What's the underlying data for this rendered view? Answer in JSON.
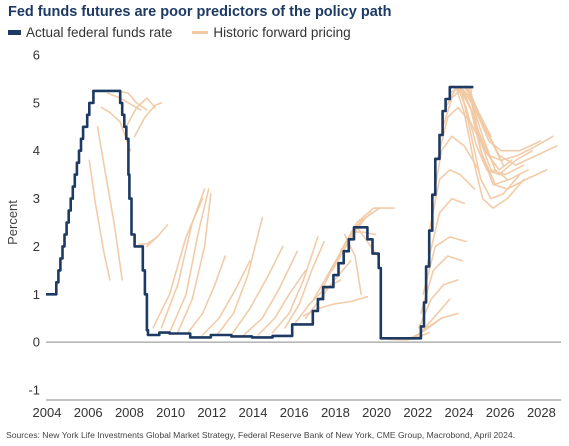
{
  "chart_data": {
    "type": "line",
    "title": "Fed funds futures are poor predictors of the policy path",
    "ylabel": "Percent",
    "xlabel": "",
    "xlim": [
      2004,
      2029
    ],
    "ylim": [
      -1,
      6
    ],
    "x_ticks": [
      "2004",
      "2006",
      "2008",
      "2010",
      "2012",
      "2014",
      "2016",
      "2018",
      "2020",
      "2022",
      "2024",
      "2026",
      "2028"
    ],
    "y_ticks": [
      "-1",
      "0",
      "1",
      "2",
      "3",
      "4",
      "5",
      "6"
    ],
    "legend": {
      "position": "top-left"
    },
    "colors": {
      "actual": "#1d3a63",
      "forward": "#f0c9a4",
      "title": "#1d3a63"
    },
    "series": [
      {
        "name": "Actual federal funds rate",
        "style": "step",
        "x": [
          2004.0,
          2004.5,
          2004.6,
          2004.7,
          2004.8,
          2004.9,
          2005.0,
          2005.1,
          2005.2,
          2005.3,
          2005.4,
          2005.5,
          2005.6,
          2005.7,
          2005.8,
          2005.9,
          2006.0,
          2006.1,
          2006.2,
          2006.3,
          2006.4,
          2006.5,
          2007.6,
          2007.7,
          2007.8,
          2007.9,
          2008.0,
          2008.05,
          2008.15,
          2008.3,
          2008.7,
          2008.8,
          2008.9,
          2008.95,
          2009.5,
          2010.0,
          2011.0,
          2012.0,
          2013.0,
          2014.0,
          2015.0,
          2015.95,
          2016.95,
          2017.2,
          2017.45,
          2017.95,
          2018.2,
          2018.45,
          2018.7,
          2018.95,
          2019.5,
          2019.6,
          2019.85,
          2020.15,
          2020.25,
          2021.0,
          2022.0,
          2022.2,
          2022.35,
          2022.45,
          2022.6,
          2022.75,
          2022.9,
          2023.1,
          2023.25,
          2023.4,
          2023.6,
          2024.7,
          2024.75
        ],
        "y": [
          1.0,
          1.25,
          1.5,
          1.75,
          2.0,
          2.25,
          2.5,
          2.75,
          3.0,
          3.25,
          3.5,
          3.75,
          4.0,
          4.25,
          4.5,
          4.5,
          4.75,
          5.0,
          5.0,
          5.25,
          5.25,
          5.25,
          5.0,
          4.75,
          4.5,
          4.25,
          3.5,
          3.0,
          2.25,
          2.0,
          1.5,
          1.0,
          0.25,
          0.15,
          0.2,
          0.18,
          0.1,
          0.15,
          0.12,
          0.1,
          0.13,
          0.37,
          0.65,
          0.9,
          1.15,
          1.4,
          1.65,
          1.9,
          2.15,
          2.4,
          2.4,
          2.15,
          1.85,
          1.55,
          0.08,
          0.08,
          0.08,
          0.33,
          0.83,
          1.58,
          2.33,
          3.08,
          3.83,
          4.33,
          4.83,
          5.08,
          5.33,
          5.33,
          5.33
        ]
      },
      {
        "name": "Historic forward pricing",
        "x": [
          2006.1,
          2006.4,
          2006.8,
          2007.1
        ],
        "y": [
          3.8,
          2.9,
          1.9,
          1.3
        ]
      },
      {
        "name": "",
        "x": [
          2006.5,
          2006.9,
          2007.3,
          2007.7
        ],
        "y": [
          4.5,
          3.5,
          2.5,
          1.3
        ]
      },
      {
        "name": "",
        "x": [
          2006.7,
          2007.1,
          2007.6,
          2008.1
        ],
        "y": [
          4.9,
          4.8,
          4.6,
          4.0
        ]
      },
      {
        "name": "",
        "x": [
          2007.0,
          2007.6,
          2008.2,
          2008.6
        ],
        "y": [
          5.2,
          5.1,
          4.95,
          4.85
        ]
      },
      {
        "name": "",
        "x": [
          2007.5,
          2008.0,
          2008.4,
          2008.9
        ],
        "y": [
          5.25,
          5.2,
          5.0,
          4.85
        ]
      },
      {
        "name": "",
        "x": [
          2007.9,
          2008.4,
          2008.9,
          2009.3
        ],
        "y": [
          4.5,
          4.9,
          5.1,
          4.9
        ]
      },
      {
        "name": "",
        "x": [
          2008.3,
          2008.8,
          2009.3,
          2009.6
        ],
        "y": [
          4.3,
          4.7,
          4.95,
          5.0
        ]
      },
      {
        "name": "",
        "x": [
          2008.5,
          2008.9,
          2009.4
        ],
        "y": [
          2.05,
          2.05,
          2.2
        ]
      },
      {
        "name": "",
        "x": [
          2008.9,
          2009.4,
          2009.9
        ],
        "y": [
          2.0,
          2.2,
          2.45
        ]
      },
      {
        "name": "",
        "x": [
          2009.2,
          2010.0,
          2010.8,
          2011.6
        ],
        "y": [
          0.3,
          1.0,
          2.2,
          3.0
        ]
      },
      {
        "name": "",
        "x": [
          2009.6,
          2010.4,
          2011.1,
          2011.7
        ],
        "y": [
          0.3,
          1.2,
          2.5,
          3.2
        ]
      },
      {
        "name": "",
        "x": [
          2010.0,
          2010.8,
          2011.4,
          2011.9
        ],
        "y": [
          0.2,
          1.0,
          2.3,
          3.2
        ]
      },
      {
        "name": "",
        "x": [
          2010.4,
          2011.1,
          2011.7,
          2012.0
        ],
        "y": [
          0.2,
          0.9,
          2.0,
          3.1
        ]
      },
      {
        "name": "",
        "x": [
          2010.9,
          2011.6,
          2012.2,
          2012.7
        ],
        "y": [
          0.2,
          0.6,
          1.2,
          1.8
        ]
      },
      {
        "name": "",
        "x": [
          2011.6,
          2012.4,
          2013.2,
          2013.9
        ],
        "y": [
          0.15,
          0.5,
          1.1,
          1.7
        ]
      },
      {
        "name": "",
        "x": [
          2012.3,
          2013.1,
          2013.8,
          2014.5
        ],
        "y": [
          0.15,
          0.6,
          1.4,
          2.6
        ]
      },
      {
        "name": "",
        "x": [
          2013.0,
          2013.9,
          2014.8,
          2015.5
        ],
        "y": [
          0.15,
          0.7,
          1.4,
          2.0
        ]
      },
      {
        "name": "",
        "x": [
          2013.6,
          2014.5,
          2015.3,
          2016.2
        ],
        "y": [
          0.15,
          0.5,
          1.1,
          1.9
        ]
      },
      {
        "name": "",
        "x": [
          2014.3,
          2015.1,
          2015.8,
          2016.6
        ],
        "y": [
          0.15,
          0.5,
          1.0,
          1.5
        ]
      },
      {
        "name": "",
        "x": [
          2015.0,
          2015.8,
          2016.5,
          2017.2
        ],
        "y": [
          0.2,
          0.6,
          1.3,
          2.2
        ]
      },
      {
        "name": "",
        "x": [
          2015.6,
          2016.3,
          2016.9,
          2017.5
        ],
        "y": [
          0.3,
          0.8,
          1.5,
          2.1
        ]
      },
      {
        "name": "",
        "x": [
          2016.1,
          2016.8,
          2017.5,
          2018.3
        ],
        "y": [
          0.4,
          0.8,
          1.1,
          1.3
        ]
      },
      {
        "name": "",
        "x": [
          2016.6,
          2017.3,
          2018.0,
          2018.8
        ],
        "y": [
          0.5,
          0.9,
          1.3,
          1.7
        ]
      },
      {
        "name": "",
        "x": [
          2017.0,
          2017.8,
          2018.6,
          2019.4
        ],
        "y": [
          0.9,
          1.5,
          2.1,
          2.6
        ]
      },
      {
        "name": "",
        "x": [
          2017.4,
          2018.2,
          2019.0,
          2019.8
        ],
        "y": [
          1.1,
          1.8,
          2.4,
          2.7
        ]
      },
      {
        "name": "",
        "x": [
          2017.9,
          2018.7,
          2019.5,
          2020.2
        ],
        "y": [
          1.5,
          2.1,
          2.6,
          2.8
        ]
      },
      {
        "name": "",
        "x": [
          2018.3,
          2019.1,
          2019.9,
          2020.9
        ],
        "y": [
          1.9,
          2.5,
          2.8,
          2.8
        ]
      },
      {
        "name": "",
        "x": [
          2018.8,
          2019.4,
          2020.0
        ],
        "y": [
          2.3,
          2.3,
          2.25
        ]
      },
      {
        "name": "",
        "x": [
          2019.1,
          2019.6,
          2020.1
        ],
        "y": [
          2.4,
          2.1,
          1.8
        ]
      },
      {
        "name": "",
        "x": [
          2016.5,
          2017.2,
          2018.0,
          2018.8,
          2019.6
        ],
        "y": [
          0.55,
          0.7,
          0.8,
          0.85,
          0.95
        ]
      },
      {
        "name": "",
        "x": [
          2018.5,
          2019.0,
          2019.3
        ],
        "y": [
          2.25,
          1.8,
          1.0
        ]
      },
      {
        "name": "",
        "x": [
          2020.2,
          2020.8,
          2021.5,
          2022.0
        ],
        "y": [
          0.08,
          0.06,
          0.05,
          0.08
        ]
      },
      {
        "name": "",
        "x": [
          2020.6,
          2021.3,
          2022.0,
          2022.6
        ],
        "y": [
          0.06,
          0.05,
          0.1,
          0.2
        ]
      },
      {
        "name": "",
        "x": [
          2021.2,
          2021.8,
          2022.4,
          2023.2
        ],
        "y": [
          0.06,
          0.1,
          0.25,
          0.5
        ]
      },
      {
        "name": "",
        "x": [
          2021.7,
          2022.2,
          2022.8,
          2023.6
        ],
        "y": [
          0.08,
          0.2,
          0.5,
          0.9
        ]
      },
      {
        "name": "",
        "x": [
          2021.9,
          2022.5,
          2023.2,
          2024.0
        ],
        "y": [
          0.1,
          0.3,
          0.5,
          0.6
        ]
      },
      {
        "name": "",
        "x": [
          2022.1,
          2022.7,
          2023.3,
          2024.0
        ],
        "y": [
          0.3,
          0.9,
          1.2,
          1.3
        ]
      },
      {
        "name": "",
        "x": [
          2022.2,
          2022.8,
          2023.5,
          2024.2
        ],
        "y": [
          0.6,
          1.5,
          1.8,
          1.7
        ]
      },
      {
        "name": "",
        "x": [
          2022.3,
          2022.9,
          2023.6,
          2024.4
        ],
        "y": [
          1.0,
          2.0,
          2.2,
          2.1
        ]
      },
      {
        "name": "",
        "x": [
          2022.5,
          2023.1,
          2023.7,
          2024.3
        ],
        "y": [
          1.6,
          2.7,
          3.0,
          2.9
        ]
      },
      {
        "name": "",
        "x": [
          2022.6,
          2023.1,
          2023.6,
          2024.1,
          2024.8
        ],
        "y": [
          2.3,
          3.4,
          3.6,
          3.5,
          3.2
        ]
      },
      {
        "name": "",
        "x": [
          2022.8,
          2023.2,
          2023.7,
          2024.3,
          2025.0
        ],
        "y": [
          3.0,
          4.0,
          4.3,
          4.1,
          3.6
        ]
      },
      {
        "name": "",
        "x": [
          2023.0,
          2023.5,
          2024.0,
          2024.6,
          2025.2,
          2025.8
        ],
        "y": [
          3.8,
          4.7,
          4.9,
          4.6,
          4.1,
          3.7
        ]
      },
      {
        "name": "",
        "x": [
          2023.2,
          2023.7,
          2024.2,
          2024.8,
          2025.5,
          2026.2
        ],
        "y": [
          4.4,
          5.1,
          5.3,
          4.9,
          4.3,
          3.7
        ]
      },
      {
        "name": "",
        "x": [
          2023.4,
          2023.9,
          2024.4,
          2025.0,
          2025.6
        ],
        "y": [
          4.9,
          5.3,
          5.35,
          4.8,
          4.3
        ]
      },
      {
        "name": "",
        "x": [
          2023.6,
          2024.1,
          2024.6,
          2025.2,
          2025.8,
          2026.4
        ],
        "y": [
          5.2,
          5.35,
          5.1,
          4.3,
          3.6,
          3.4
        ]
      },
      {
        "name": "",
        "x": [
          2023.7,
          2024.1,
          2024.7,
          2025.3,
          2026.0,
          2026.6
        ],
        "y": [
          5.35,
          5.3,
          4.8,
          4.0,
          3.6,
          3.8
        ]
      },
      {
        "name": "",
        "x": [
          2023.8,
          2024.2,
          2024.7,
          2025.1,
          2025.6,
          2026.2,
          2027.0
        ],
        "y": [
          5.35,
          5.2,
          4.2,
          3.4,
          3.0,
          3.1,
          3.5
        ]
      },
      {
        "name": "",
        "x": [
          2023.9,
          2024.3,
          2024.8,
          2025.2,
          2025.7,
          2026.4,
          2027.2
        ],
        "y": [
          5.33,
          4.8,
          3.7,
          3.0,
          2.8,
          3.0,
          3.4
        ]
      },
      {
        "name": "",
        "x": [
          2024.0,
          2024.4,
          2024.9,
          2025.4,
          2026.0,
          2026.8,
          2027.6
        ],
        "y": [
          5.3,
          4.9,
          4.1,
          3.6,
          3.5,
          3.8,
          4.0
        ]
      },
      {
        "name": "",
        "x": [
          2024.1,
          2024.5,
          2025.0,
          2025.5,
          2026.1,
          2026.9,
          2027.8,
          2028.6
        ],
        "y": [
          5.3,
          5.0,
          4.4,
          3.9,
          3.8,
          3.9,
          4.1,
          4.3
        ]
      },
      {
        "name": "",
        "x": [
          2024.2,
          2024.6,
          2025.1,
          2025.7,
          2026.4,
          2027.3,
          2028.3
        ],
        "y": [
          5.3,
          4.9,
          4.0,
          3.3,
          3.2,
          3.4,
          3.6
        ]
      },
      {
        "name": "",
        "x": [
          2024.3,
          2024.7,
          2025.3,
          2026.0,
          2026.8,
          2027.8,
          2028.8
        ],
        "y": [
          5.33,
          5.1,
          4.5,
          3.9,
          3.7,
          3.9,
          4.1
        ]
      },
      {
        "name": "",
        "x": [
          2024.4,
          2024.9,
          2025.5,
          2026.1,
          2027.0,
          2028.0
        ],
        "y": [
          5.33,
          4.8,
          4.2,
          4.0,
          4.0,
          4.2
        ]
      },
      {
        "name": "",
        "x": [
          2024.5,
          2025.0,
          2025.6,
          2026.3,
          2027.2
        ],
        "y": [
          5.33,
          4.3,
          3.6,
          3.5,
          3.7
        ]
      },
      {
        "name": "",
        "x": [
          2024.6,
          2025.1,
          2025.8,
          2026.5,
          2027.4
        ],
        "y": [
          5.33,
          4.0,
          3.3,
          3.4,
          3.6
        ]
      }
    ]
  },
  "legend_items": [
    {
      "label": "Actual federal funds rate"
    },
    {
      "label": "Historic forward pricing"
    }
  ],
  "source": "Sources: New York Life Investments Global Market Strategy, Federal Reserve Bank of New York, CME Group, Macrobond, April 2024."
}
